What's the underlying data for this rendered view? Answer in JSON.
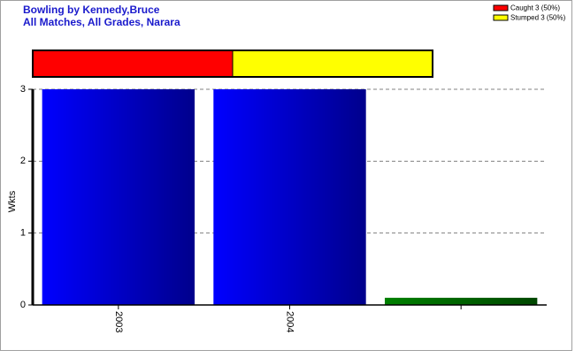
{
  "chart_data": {
    "type": "bar",
    "title": "Bowling by Kennedy,Bruce",
    "subtitle": "All Matches, All Grades, Narara",
    "y_label": "Wkts",
    "categories": [
      "2003",
      "2004",
      null
    ],
    "values": [
      3,
      3,
      0.1
    ],
    "colors": [
      "#0000ff",
      "#0000ff",
      "#008000"
    ],
    "ylim": [
      0,
      3
    ],
    "yticks": [
      0,
      1,
      2,
      3
    ],
    "grid": true,
    "breakdown": [
      {
        "label": "Caught 3 (50%)",
        "value": 3,
        "color": "#ff0000"
      },
      {
        "label": "Stumped 3 (50%)",
        "value": 3,
        "color": "#ffff00"
      }
    ],
    "legend": "top-right"
  }
}
